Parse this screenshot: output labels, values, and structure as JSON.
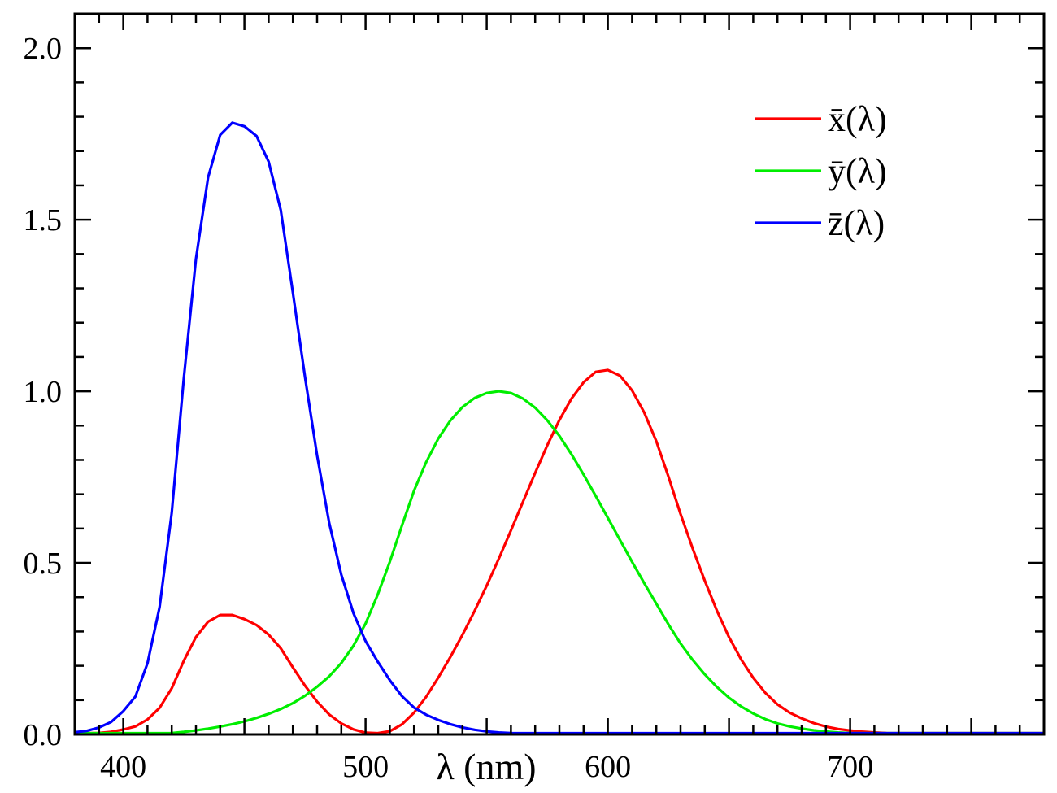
{
  "chart_data": {
    "type": "line",
    "title": "",
    "xlabel": "λ (nm)",
    "ylabel": "",
    "xlim": [
      380,
      780
    ],
    "ylim": [
      0,
      2.1
    ],
    "grid": false,
    "legend_position": "top-right",
    "x_ticks": [
      {
        "value": 400,
        "label": "400"
      },
      {
        "value": 500,
        "label": "500"
      },
      {
        "value": 600,
        "label": "600"
      },
      {
        "value": 700,
        "label": "700"
      }
    ],
    "y_ticks": [
      {
        "value": 0.0,
        "label": "0.0"
      },
      {
        "value": 0.5,
        "label": "0.5"
      },
      {
        "value": 1.0,
        "label": "1.0"
      },
      {
        "value": 1.5,
        "label": "1.5"
      },
      {
        "value": 2.0,
        "label": "2.0"
      }
    ],
    "x": [
      380,
      385,
      390,
      395,
      400,
      405,
      410,
      415,
      420,
      425,
      430,
      435,
      440,
      445,
      450,
      455,
      460,
      465,
      470,
      475,
      480,
      485,
      490,
      495,
      500,
      505,
      510,
      515,
      520,
      525,
      530,
      535,
      540,
      545,
      550,
      555,
      560,
      565,
      570,
      575,
      580,
      585,
      590,
      595,
      600,
      605,
      610,
      615,
      620,
      625,
      630,
      635,
      640,
      645,
      650,
      655,
      660,
      665,
      670,
      675,
      680,
      685,
      690,
      695,
      700,
      705,
      710,
      715,
      720,
      725,
      730,
      735,
      740,
      745,
      750,
      755,
      760,
      765,
      770,
      775,
      780
    ],
    "series": [
      {
        "name": "x̄(λ)",
        "color": "#ff0000",
        "values": [
          0.0014,
          0.0022,
          0.0042,
          0.0076,
          0.0143,
          0.0232,
          0.0435,
          0.0776,
          0.1344,
          0.2148,
          0.2839,
          0.3285,
          0.3483,
          0.3481,
          0.3362,
          0.3187,
          0.2908,
          0.2511,
          0.1954,
          0.1421,
          0.0956,
          0.058,
          0.032,
          0.0147,
          0.0049,
          0.0024,
          0.0093,
          0.0291,
          0.0633,
          0.1096,
          0.1655,
          0.2257,
          0.2904,
          0.3597,
          0.4334,
          0.5121,
          0.5945,
          0.6784,
          0.7621,
          0.8425,
          0.9163,
          0.9786,
          1.0263,
          1.0567,
          1.0622,
          1.0456,
          1.0026,
          0.9384,
          0.8544,
          0.7514,
          0.6424,
          0.5419,
          0.4479,
          0.3608,
          0.2835,
          0.2187,
          0.1649,
          0.1212,
          0.0874,
          0.0636,
          0.0468,
          0.0329,
          0.0227,
          0.0158,
          0.0114,
          0.0081,
          0.0058,
          0.0041,
          0.0029,
          0.002,
          0.0014,
          0.001,
          0.0007,
          0.0005,
          0.0003,
          0.0002,
          0.0002,
          0.0001,
          0.0001,
          0.0001,
          0.0
        ]
      },
      {
        "name": "ȳ(λ)",
        "color": "#00ee00",
        "values": [
          0.0,
          0.0001,
          0.0001,
          0.0002,
          0.0004,
          0.0006,
          0.0012,
          0.0022,
          0.004,
          0.0073,
          0.0116,
          0.0168,
          0.023,
          0.0298,
          0.038,
          0.048,
          0.06,
          0.0739,
          0.091,
          0.1126,
          0.139,
          0.1693,
          0.208,
          0.2586,
          0.323,
          0.4073,
          0.503,
          0.6082,
          0.71,
          0.7932,
          0.862,
          0.9149,
          0.954,
          0.9803,
          0.995,
          1.0,
          0.995,
          0.9786,
          0.952,
          0.9154,
          0.87,
          0.8163,
          0.757,
          0.6949,
          0.631,
          0.5668,
          0.503,
          0.4412,
          0.381,
          0.321,
          0.265,
          0.217,
          0.175,
          0.1382,
          0.107,
          0.0816,
          0.061,
          0.0446,
          0.032,
          0.0232,
          0.017,
          0.0119,
          0.0082,
          0.0057,
          0.0041,
          0.0029,
          0.0021,
          0.0015,
          0.001,
          0.0007,
          0.0005,
          0.0004,
          0.0003,
          0.0002,
          0.0001,
          0.0001,
          0.0001,
          0.0,
          0.0,
          0.0,
          0.0
        ]
      },
      {
        "name": "z̄(λ)",
        "color": "#0000ff",
        "values": [
          0.0065,
          0.0105,
          0.0201,
          0.0362,
          0.0679,
          0.1102,
          0.2074,
          0.3713,
          0.6456,
          1.0391,
          1.3856,
          1.623,
          1.7471,
          1.7826,
          1.7721,
          1.7441,
          1.6692,
          1.5281,
          1.2876,
          1.0419,
          0.813,
          0.6162,
          0.4652,
          0.3533,
          0.272,
          0.2123,
          0.1582,
          0.1117,
          0.0782,
          0.0573,
          0.0422,
          0.0298,
          0.0203,
          0.0134,
          0.0087,
          0.0057,
          0.0039,
          0.0027,
          0.0021,
          0.0018,
          0.0017,
          0.0014,
          0.0011,
          0.001,
          0.0008,
          0.0006,
          0.0003,
          0.0002,
          0.0002,
          0.0001,
          0.0,
          0.0,
          0.0,
          0.0,
          0.0,
          0.0,
          0.0,
          0.0,
          0.0,
          0.0,
          0.0,
          0.0,
          0.0,
          0.0,
          0.0,
          0.0,
          0.0,
          0.0,
          0.0,
          0.0,
          0.0,
          0.0,
          0.0,
          0.0,
          0.0,
          0.0,
          0.0,
          0.0,
          0.0,
          0.0,
          0.0
        ]
      }
    ]
  }
}
